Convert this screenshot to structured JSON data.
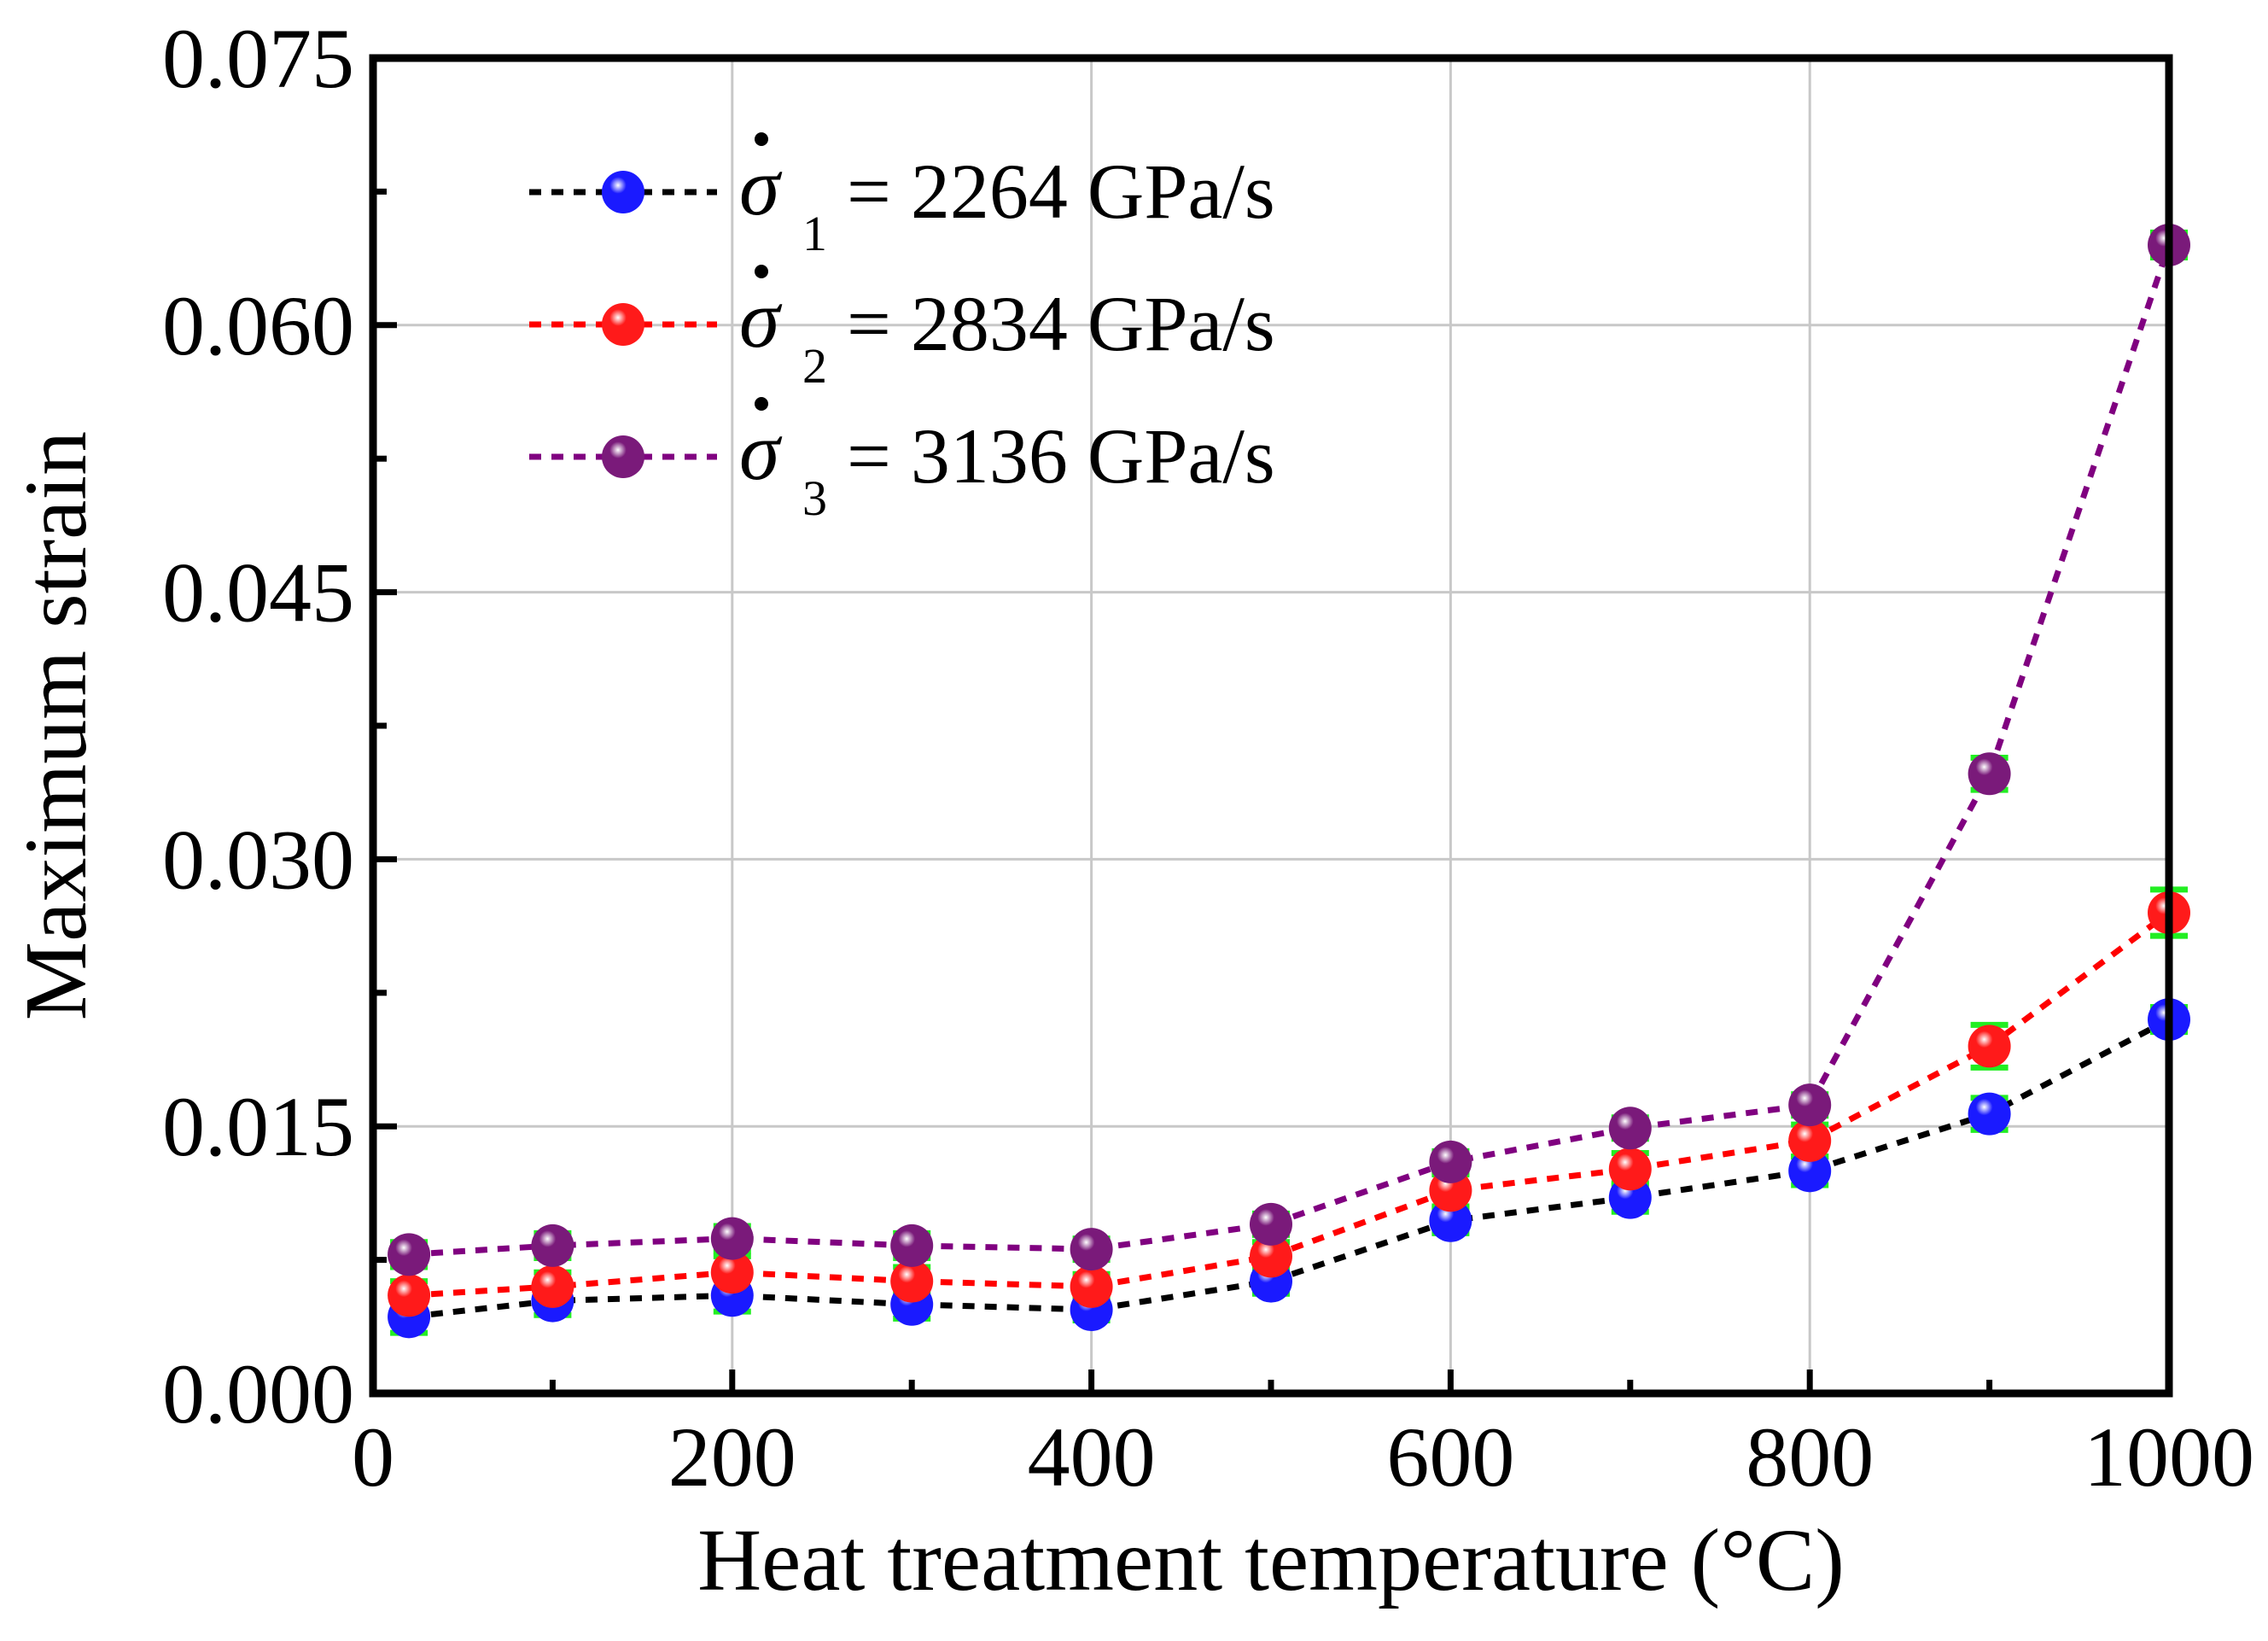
{
  "chart_data": {
    "type": "line",
    "xlabel": "Heat treatment temperature (°C)",
    "ylabel": "Maximum strain",
    "xlim": [
      0,
      1000
    ],
    "ylim": [
      0,
      0.075
    ],
    "xticks": [
      0,
      200,
      400,
      600,
      800,
      1000
    ],
    "xtick_labels": [
      "0",
      "200",
      "400",
      "600",
      "800",
      "1000"
    ],
    "yticks": [
      0,
      0.015,
      0.03,
      0.045,
      0.06,
      0.075
    ],
    "ytick_labels": [
      "0.000",
      "0.015",
      "0.030",
      "0.045",
      "0.060",
      "0.075"
    ],
    "grid": true,
    "legend_position": "top-left",
    "x": [
      20,
      100,
      200,
      300,
      400,
      500,
      600,
      700,
      800,
      900,
      1000
    ],
    "series": [
      {
        "name": "σ̇1 = 2264 GPa/s",
        "symbol": "σ",
        "subscript": "1",
        "rate_text": "= 2264 GPa/s",
        "line_color": "#000000",
        "marker_color": "#1a1aff",
        "values": [
          0.0043,
          0.0052,
          0.0055,
          0.005,
          0.0047,
          0.0063,
          0.0097,
          0.011,
          0.0125,
          0.0157,
          0.021
        ],
        "errors": [
          0.0009,
          0.0008,
          0.0009,
          0.0008,
          0.0006,
          0.0007,
          0.0007,
          0.0008,
          0.0008,
          0.0009,
          0.0007
        ]
      },
      {
        "name": "σ̇2 = 2834 GPa/s",
        "symbol": "σ",
        "subscript": "2",
        "rate_text": "= 2834 GPa/s",
        "line_color": "#ff0000",
        "marker_color": "#ff1a1a",
        "values": [
          0.0055,
          0.006,
          0.0068,
          0.0063,
          0.006,
          0.0077,
          0.0114,
          0.0126,
          0.0142,
          0.0195,
          0.027
        ],
        "errors": [
          0.0008,
          0.0008,
          0.0009,
          0.0008,
          0.0007,
          0.0008,
          0.0009,
          0.0009,
          0.0009,
          0.0012,
          0.0013
        ]
      },
      {
        "name": "σ̇3 = 3136 GPa/s",
        "symbol": "σ",
        "subscript": "3",
        "rate_text": "= 3136 GPa/s",
        "line_color": "#800080",
        "marker_color": "#7a1a7a",
        "values": [
          0.0078,
          0.0083,
          0.0087,
          0.0083,
          0.0081,
          0.0095,
          0.013,
          0.0149,
          0.0162,
          0.0348,
          0.0645
        ],
        "errors": [
          0.0007,
          0.0007,
          0.0007,
          0.0007,
          0.0006,
          0.0006,
          0.0006,
          0.0006,
          0.0006,
          0.0009,
          0.0007
        ]
      }
    ],
    "errorbar_color": "#22ee22"
  }
}
